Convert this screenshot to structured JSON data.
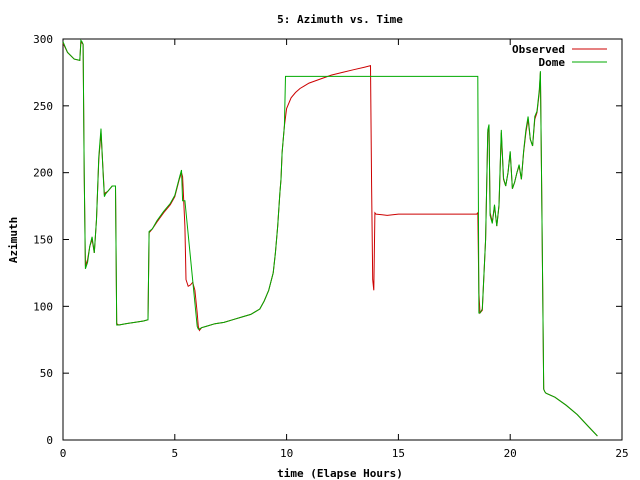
{
  "chart_data": {
    "type": "line",
    "title": "5: Azimuth vs. Time",
    "xlabel": "time (Elapse Hours)",
    "ylabel": "Azimuth",
    "xlim": [
      0,
      25
    ],
    "ylim": [
      0,
      300
    ],
    "xticks": [
      "0",
      "5",
      "10",
      "15",
      "20",
      "25"
    ],
    "yticks": [
      "0",
      "50",
      "100",
      "150",
      "200",
      "250",
      "300"
    ],
    "grid": false,
    "legend_position": "top-right",
    "series": [
      {
        "name": "Observed",
        "color": "#cc0000",
        "x": [
          0.0,
          0.2,
          0.5,
          0.75,
          0.8,
          0.85,
          0.9,
          0.95,
          1.0,
          1.1,
          1.2,
          1.3,
          1.4,
          1.5,
          1.6,
          1.7,
          1.8,
          1.85,
          1.9,
          2.0,
          2.1,
          2.2,
          2.35,
          2.4,
          2.5,
          2.8,
          3.2,
          3.6,
          3.8,
          3.85,
          4.0,
          4.2,
          4.5,
          4.8,
          5.0,
          5.2,
          5.3,
          5.35,
          5.45,
          5.5,
          5.6,
          5.7,
          5.8,
          5.9,
          6.0,
          6.05,
          6.1,
          6.2,
          6.4,
          6.8,
          7.2,
          7.6,
          8.0,
          8.4,
          8.8,
          9.0,
          9.2,
          9.4,
          9.5,
          9.6,
          9.7,
          9.75,
          9.8,
          9.9,
          10.0,
          10.2,
          10.4,
          10.6,
          10.8,
          11.0,
          11.5,
          12.0,
          12.5,
          13.0,
          13.5,
          13.75,
          13.8,
          13.85,
          13.9,
          13.95,
          14.0,
          14.5,
          15.0,
          16.0,
          17.0,
          18.0,
          18.5,
          18.55,
          18.6,
          18.65,
          18.75,
          18.9,
          19.0,
          19.05,
          19.1,
          19.2,
          19.3,
          19.4,
          19.5,
          19.6,
          19.7,
          19.8,
          19.9,
          20.0,
          20.1,
          20.2,
          20.3,
          20.4,
          20.5,
          20.6,
          20.7,
          20.8,
          20.9,
          21.0,
          21.1,
          21.2,
          21.3,
          21.35,
          21.4,
          21.45,
          21.5,
          21.55,
          21.6,
          22.0,
          22.5,
          23.0,
          23.5,
          23.9
        ],
        "y": [
          297,
          290,
          285,
          284,
          298,
          297,
          296,
          200,
          130,
          135,
          145,
          150,
          140,
          165,
          210,
          230,
          200,
          183,
          185,
          186,
          188,
          190,
          190,
          87,
          86,
          87,
          88,
          89,
          90,
          155,
          158,
          163,
          170,
          176,
          182,
          195,
          200,
          197,
          160,
          120,
          115,
          116,
          118,
          112,
          95,
          85,
          82,
          84,
          85,
          87,
          88,
          90,
          92,
          94,
          98,
          104,
          112,
          125,
          140,
          160,
          185,
          195,
          215,
          235,
          248,
          256,
          260,
          263,
          265,
          267,
          270,
          273,
          275,
          277,
          279,
          280,
          190,
          120,
          112,
          170,
          169,
          168,
          169,
          169,
          169,
          169,
          169,
          170,
          110,
          95,
          97,
          150,
          230,
          235,
          170,
          163,
          175,
          160,
          175,
          230,
          195,
          190,
          200,
          215,
          188,
          193,
          200,
          205,
          195,
          215,
          230,
          240,
          225,
          220,
          240,
          245,
          260,
          275,
          200,
          120,
          38,
          36,
          35,
          32,
          26,
          19,
          10,
          3
        ]
      },
      {
        "name": "Dome",
        "color": "#00aa00",
        "x": [
          0.0,
          0.2,
          0.5,
          0.75,
          0.8,
          0.85,
          0.9,
          0.95,
          1.0,
          1.1,
          1.2,
          1.3,
          1.4,
          1.5,
          1.6,
          1.7,
          1.8,
          1.85,
          1.9,
          2.0,
          2.1,
          2.2,
          2.35,
          2.4,
          2.5,
          2.8,
          3.2,
          3.6,
          3.8,
          3.85,
          4.0,
          4.2,
          4.5,
          4.8,
          5.0,
          5.2,
          5.3,
          5.35,
          5.45,
          6.0,
          6.05,
          6.1,
          6.2,
          6.4,
          6.8,
          7.2,
          7.6,
          8.0,
          8.4,
          8.8,
          9.0,
          9.2,
          9.4,
          9.5,
          9.6,
          9.7,
          9.75,
          9.8,
          9.9,
          9.95,
          18.55,
          18.6,
          18.65,
          18.75,
          18.9,
          19.0,
          19.05,
          19.1,
          19.2,
          19.3,
          19.4,
          19.5,
          19.6,
          19.7,
          19.8,
          19.9,
          20.0,
          20.1,
          20.2,
          20.3,
          20.4,
          20.5,
          20.6,
          20.7,
          20.8,
          20.9,
          21.0,
          21.1,
          21.2,
          21.3,
          21.35,
          21.4,
          21.45,
          21.5,
          21.55,
          21.6,
          22.0,
          22.5,
          23.0,
          23.5,
          23.9
        ],
        "y": [
          298,
          290,
          285,
          284,
          299,
          298,
          296,
          200,
          128,
          133,
          145,
          152,
          140,
          165,
          212,
          233,
          198,
          182,
          184,
          186,
          188,
          190,
          190,
          86,
          86,
          87,
          88,
          89,
          90,
          156,
          158,
          164,
          171,
          177,
          183,
          196,
          202,
          179,
          179,
          85,
          83,
          83,
          84,
          85,
          87,
          88,
          90,
          92,
          94,
          98,
          104,
          112,
          125,
          140,
          160,
          185,
          195,
          215,
          235,
          272,
          272,
          95,
          95,
          98,
          150,
          232,
          236,
          168,
          162,
          176,
          160,
          176,
          232,
          196,
          190,
          200,
          216,
          188,
          193,
          200,
          206,
          195,
          216,
          232,
          242,
          225,
          220,
          242,
          246,
          262,
          276,
          200,
          120,
          38,
          36,
          35,
          32,
          26,
          19,
          10,
          3
        ]
      }
    ]
  }
}
